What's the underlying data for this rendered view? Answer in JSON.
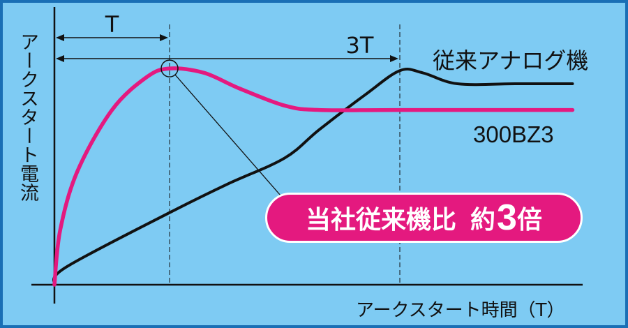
{
  "chart_data": {
    "type": "line",
    "ylabel": "アークスタート電流",
    "xlabel": "アークスタート時間（T）",
    "x_markers": [
      {
        "label": "T",
        "x": 1
      },
      {
        "label": "3T",
        "x": 3
      }
    ],
    "series": [
      {
        "name": "従来アナログ機",
        "color": "#111111",
        "x": [
          0,
          0.1,
          1.0,
          1.5,
          2.0,
          2.3,
          2.7,
          3.0,
          3.2,
          3.5,
          4.0,
          4.5
        ],
        "y": [
          0,
          0.08,
          0.33,
          0.46,
          0.58,
          0.71,
          0.87,
          0.98,
          0.97,
          0.92,
          0.92,
          0.92
        ]
      },
      {
        "name": "300BZ3",
        "color": "#e4197f",
        "x": [
          0,
          0.05,
          0.2,
          0.5,
          0.8,
          1.0,
          1.3,
          1.6,
          2.0,
          2.3,
          3.0,
          4.5
        ],
        "y": [
          0,
          0.25,
          0.52,
          0.8,
          0.95,
          0.99,
          0.97,
          0.9,
          0.82,
          0.8,
          0.8,
          0.8
        ]
      }
    ],
    "grid": false
  },
  "callout": {
    "main": "当社従来機比",
    "yaku": "約",
    "num": "3",
    "bai": "倍"
  },
  "colors": {
    "background": "#7ecbf3",
    "border": "#1a6fb5",
    "accent": "#e4197f"
  }
}
